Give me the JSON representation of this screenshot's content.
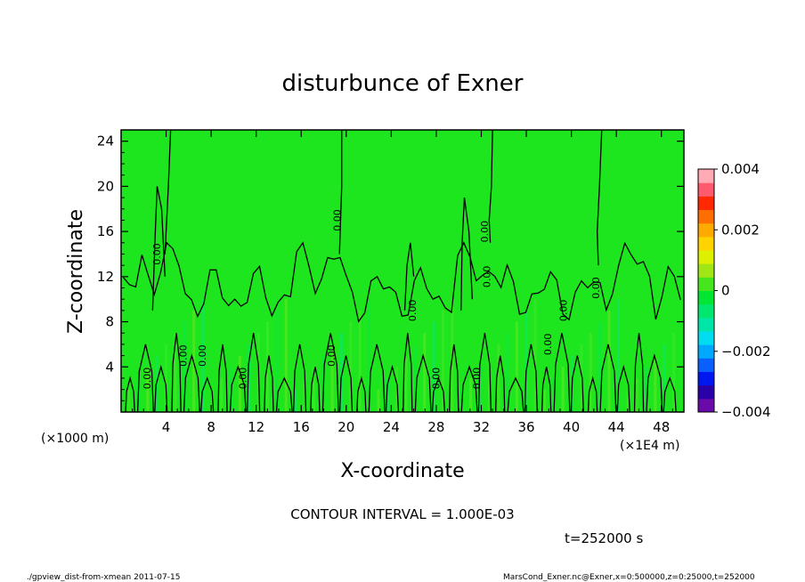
{
  "chart_data": {
    "type": "contour",
    "title": "disturbunce of Exner",
    "xlabel": "X-coordinate",
    "ylabel": "Z-coordinate",
    "x_unit_label": "(×1E4 m)",
    "y_unit_label": "(×1000 m)",
    "xlim": [
      0,
      50
    ],
    "ylim": [
      0,
      25
    ],
    "xticks": [
      4,
      8,
      12,
      16,
      20,
      24,
      28,
      32,
      36,
      40,
      44,
      48
    ],
    "yticks": [
      4,
      8,
      12,
      16,
      20,
      24
    ],
    "contour_interval_text": "CONTOUR INTERVAL = 1.000E-03",
    "time_text": "t=252000 s",
    "contour_labels": [
      {
        "text": "0.00",
        "x": 19.5,
        "z": 17
      },
      {
        "text": "0.00",
        "x": 32.6,
        "z": 16
      },
      {
        "text": "0.00",
        "x": 3.5,
        "z": 14
      },
      {
        "text": "0.00",
        "x": 32.8,
        "z": 12
      },
      {
        "text": "0.00",
        "x": 26.2,
        "z": 9
      },
      {
        "text": "0.00",
        "x": 39.6,
        "z": 9
      },
      {
        "text": "0.00",
        "x": 42.5,
        "z": 11
      },
      {
        "text": "0.00",
        "x": 5.8,
        "z": 5
      },
      {
        "text": "0.00",
        "x": 7.5,
        "z": 5
      },
      {
        "text": "0.00",
        "x": 19.0,
        "z": 5
      },
      {
        "text": "0.00",
        "x": 2.6,
        "z": 3
      },
      {
        "text": "0.00",
        "x": 11.1,
        "z": 3
      },
      {
        "text": "0.00",
        "x": 28.3,
        "z": 3
      },
      {
        "text": "0.00",
        "x": 31.9,
        "z": 3
      },
      {
        "text": "0.00",
        "x": 38.2,
        "z": 6
      }
    ],
    "colorbar": {
      "min": -0.004,
      "max": 0.004,
      "tick_labels": [
        "0.004",
        "0.002",
        "0",
        "−0.002",
        "−0.004"
      ],
      "tick_values": [
        0.004,
        0.002,
        0,
        -0.002,
        -0.004
      ],
      "colors": [
        "#6a0aa8",
        "#2a00a8",
        "#0018f0",
        "#0a60ff",
        "#00a8ff",
        "#00dcf0",
        "#00e6a8",
        "#00e66e",
        "#00e632",
        "#46e61e",
        "#a0e614",
        "#dcf000",
        "#ffd200",
        "#ffaa00",
        "#ff6e00",
        "#ff2800",
        "#ff5a6e",
        "#ffaab4"
      ]
    },
    "field_color": "#1ee61e"
  },
  "footer": {
    "left": "./gpview_dist-from-xmean  2011-07-15",
    "right": "MarsCond_Exner.nc@Exner,x=0:500000,z=0:25000,t=252000"
  }
}
